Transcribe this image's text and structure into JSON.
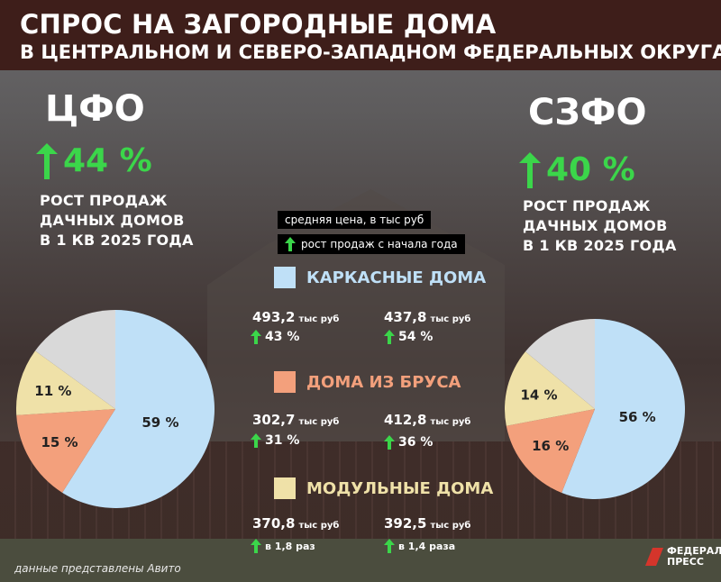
{
  "header": {
    "line1": "СПРОС НА ЗАГОРОДНЫЕ ДОМА",
    "line2": "В ЦЕНТРАЛЬНОМ И СЕВЕРО-ЗАПАДНОМ ФЕДЕРАЛЬНЫХ ОКРУГАХ"
  },
  "regions": {
    "cfo": {
      "name": "ЦФО",
      "growth": "44 %",
      "desc": [
        "РОСТ ПРОДАЖ",
        "ДАЧНЫХ ДОМОВ",
        "В 1 КВ 2025 ГОДА"
      ]
    },
    "szfo": {
      "name": "СЗФО",
      "growth": "40 %",
      "desc": [
        "РОСТ ПРОДАЖ",
        "ДАЧНЫХ ДОМОВ",
        "В 1 КВ 2025 ГОДА"
      ]
    }
  },
  "legend": {
    "price_label": "средняя цена, в тыс руб",
    "growth_label": "рост продаж с начала года"
  },
  "unit": "тыс руб",
  "categories": [
    {
      "name": "КАРКАСНЫЕ ДОМА",
      "color": "#bfe0f7",
      "name_color": "#bfe0f7",
      "cfo": {
        "price": "493,2",
        "growth": "43 %"
      },
      "szfo": {
        "price": "437,8",
        "growth": "54 %"
      }
    },
    {
      "name": "ДОМА ИЗ БРУСА",
      "color": "#f3a07c",
      "name_color": "#f3a07c",
      "cfo": {
        "price": "302,7",
        "growth": "31 %"
      },
      "szfo": {
        "price": "412,8",
        "growth": "36 %"
      }
    },
    {
      "name": "МОДУЛЬНЫЕ ДОМА",
      "color": "#efe1a8",
      "name_color": "#efe1a8",
      "cfo": {
        "price": "370,8",
        "growth": "в 1,8 раз"
      },
      "szfo": {
        "price": "392,5",
        "growth": "в 1,4 раза"
      }
    }
  ],
  "chart_data": [
    {
      "type": "pie",
      "region": "ЦФО",
      "labels": [
        "59 %",
        "15 %",
        "11 %",
        ""
      ],
      "values": [
        59,
        15,
        11,
        15
      ],
      "colors": [
        "#bfe0f7",
        "#f3a07c",
        "#efe1a8",
        "#d9d9d9"
      ]
    },
    {
      "type": "pie",
      "region": "СЗФО",
      "labels": [
        "56 %",
        "16 %",
        "14 %",
        ""
      ],
      "values": [
        56,
        16,
        14,
        14
      ],
      "colors": [
        "#bfe0f7",
        "#f3a07c",
        "#efe1a8",
        "#d9d9d9"
      ]
    }
  ],
  "colors": {
    "growth_green": "#3bd64a",
    "header_bg": "#3e1e1a"
  },
  "footer": {
    "source": "данные представлены Авито",
    "logo_line1": "ФЕДЕРАЛ",
    "logo_line2": "ПРЕСС"
  }
}
